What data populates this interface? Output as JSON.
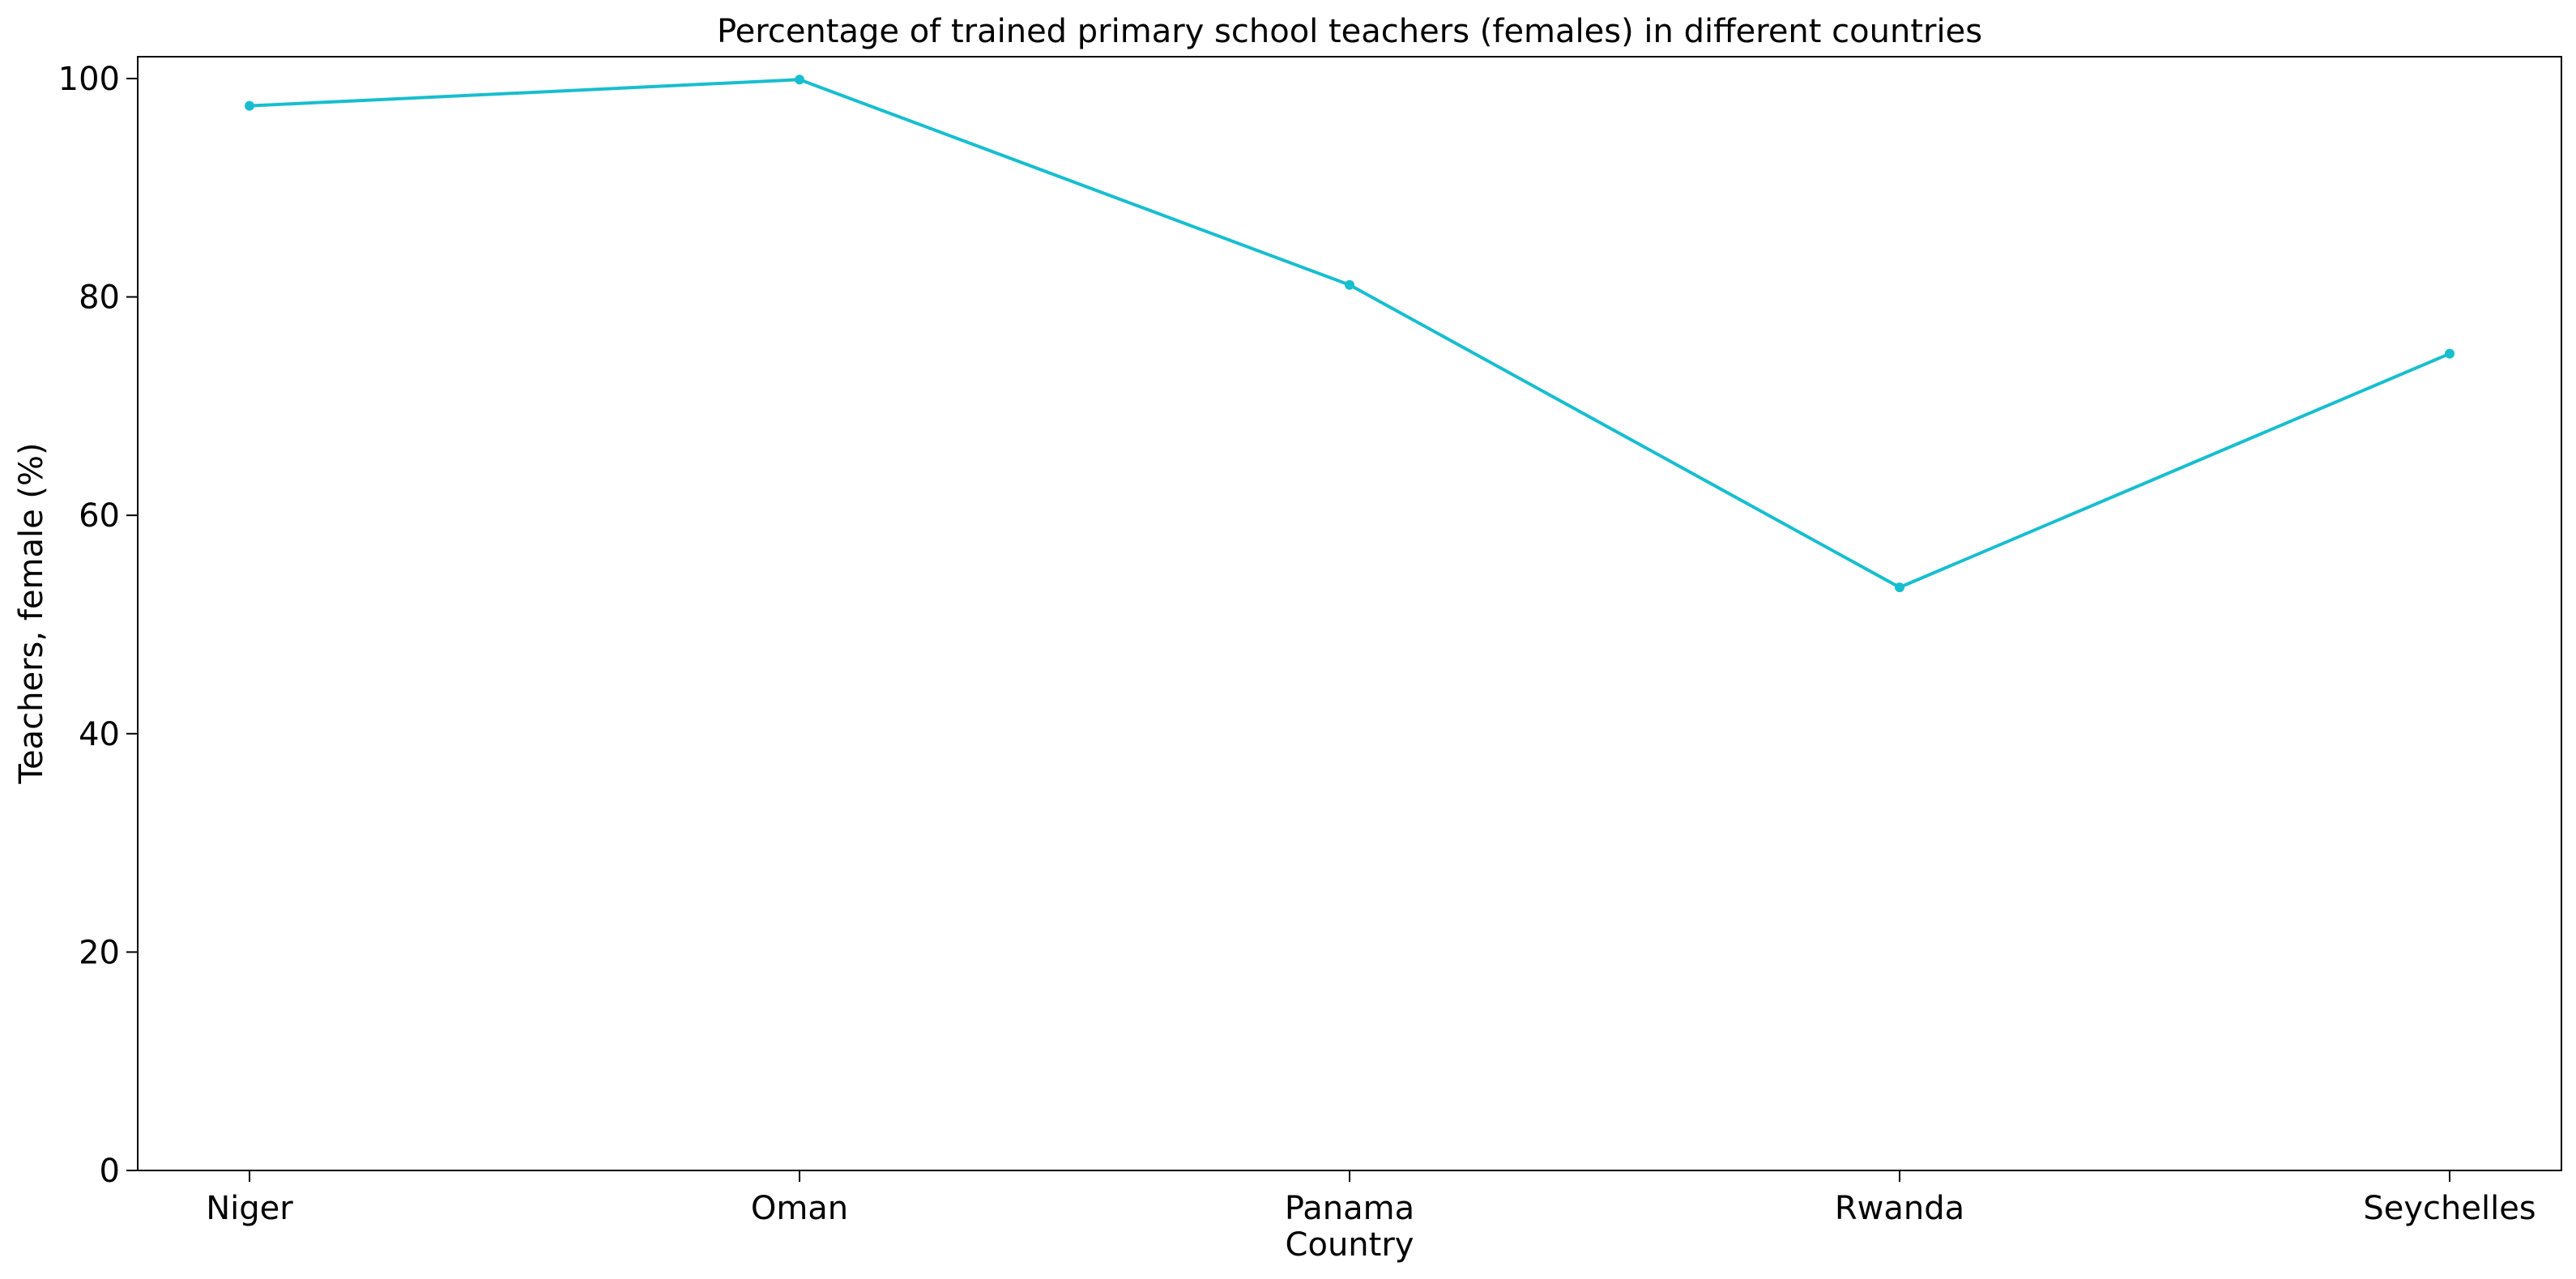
{
  "chart_data": {
    "type": "line",
    "title": "Percentage of trained primary school teachers (females) in different countries",
    "xlabel": "Country",
    "ylabel": "Teachers, female (%)",
    "categories": [
      "Niger",
      "Oman",
      "Panama",
      "Rwanda",
      "Seychelles"
    ],
    "series": [
      {
        "values": [
          97.5,
          99.9,
          81.1,
          53.4,
          74.8
        ]
      }
    ],
    "ylim": [
      0,
      102
    ],
    "yticks": [
      "0",
      "20",
      "40",
      "60",
      "80",
      "100"
    ],
    "grid": false,
    "line_color": "#17becf"
  }
}
